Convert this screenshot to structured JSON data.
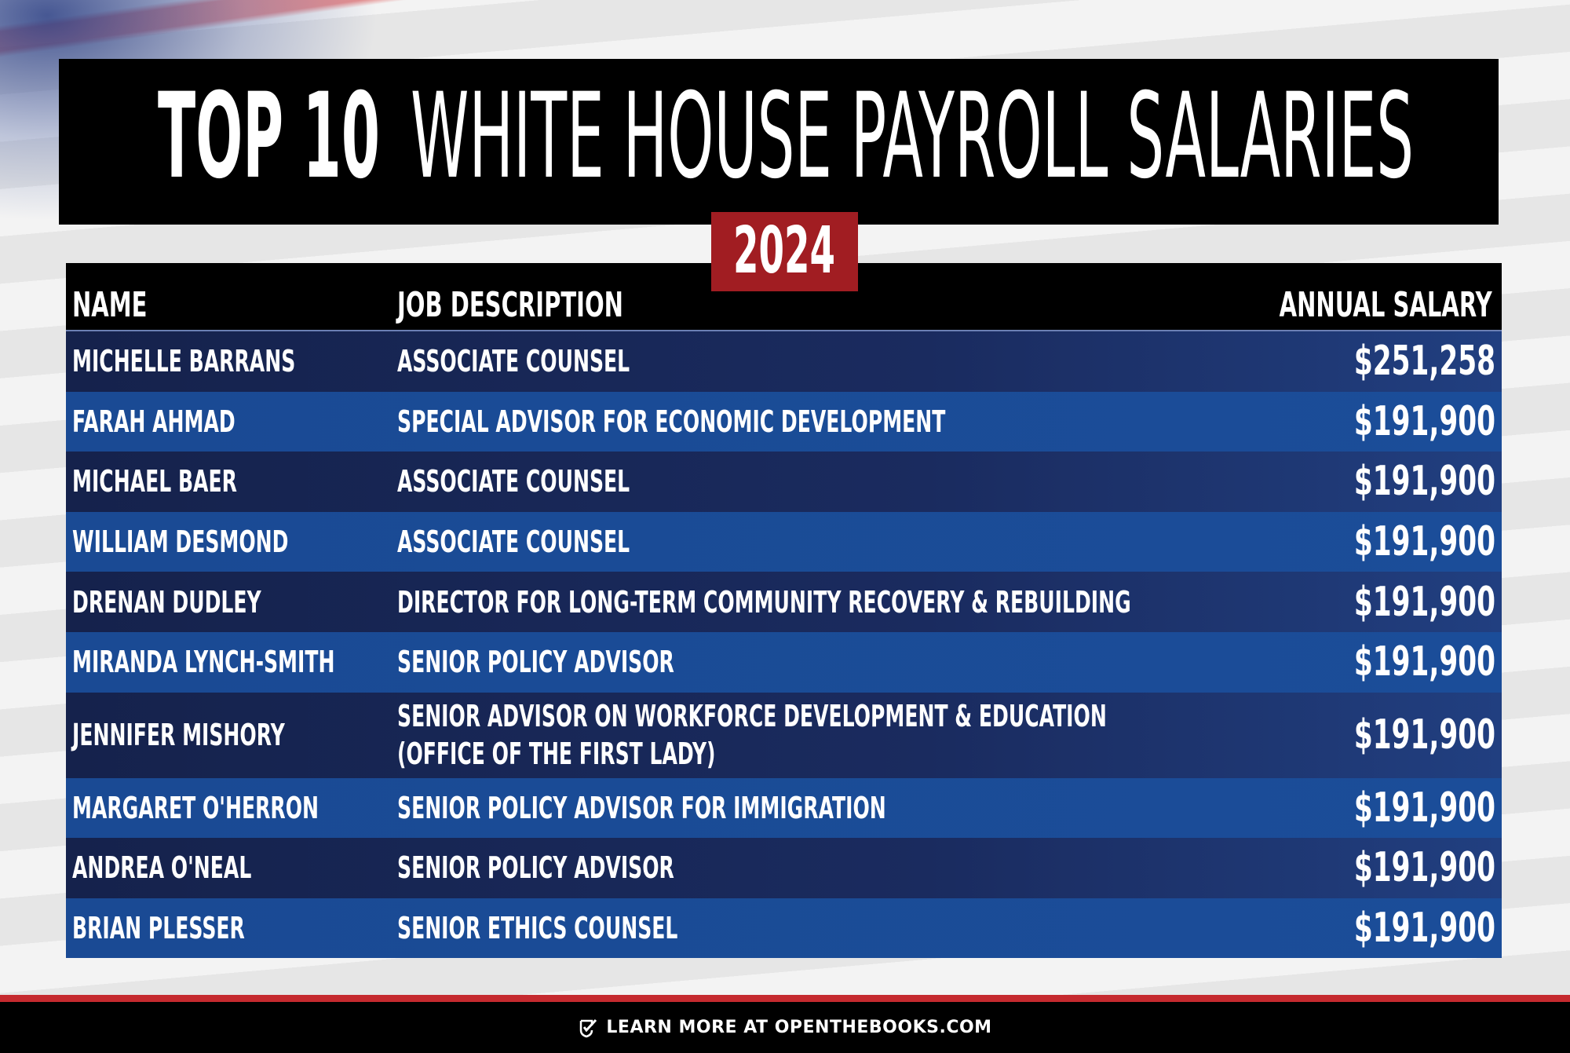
{
  "title": {
    "highlight": "TOP 10",
    "text": "WHITE HOUSE PAYROLL SALARIES"
  },
  "year": "2024",
  "table": {
    "columns": [
      "NAME",
      "JOB DESCRIPTION",
      "ANNUAL SALARY"
    ],
    "rows": [
      [
        "MICHELLE BARRANS",
        "ASSOCIATE COUNSEL",
        "$251,258"
      ],
      [
        "FARAH AHMAD",
        "SPECIAL ADVISOR FOR ECONOMIC DEVELOPMENT",
        "$191,900"
      ],
      [
        "MICHAEL BAER",
        "ASSOCIATE COUNSEL",
        "$191,900"
      ],
      [
        "WILLIAM DESMOND",
        "ASSOCIATE COUNSEL",
        "$191,900"
      ],
      [
        "DRENAN DUDLEY",
        "DIRECTOR FOR LONG-TERM COMMUNITY RECOVERY & REBUILDING",
        "$191,900"
      ],
      [
        "MIRANDA LYNCH-SMITH",
        "SENIOR POLICY ADVISOR",
        "$191,900"
      ],
      [
        "JENNIFER MISHORY",
        [
          "SENIOR ADVISOR ON WORKFORCE DEVELOPMENT & EDUCATION",
          "(OFFICE OF THE FIRST LADY)"
        ],
        "$191,900"
      ],
      [
        "MARGARET O'HERRON",
        "SENIOR POLICY ADVISOR FOR IMMIGRATION",
        "$191,900"
      ],
      [
        "ANDREA O'NEAL",
        "SENIOR POLICY ADVISOR",
        "$191,900"
      ],
      [
        "BRIAN PLESSER",
        "SENIOR ETHICS COUNSEL",
        "$191,900"
      ]
    ]
  },
  "footer": "LEARN MORE AT OPENTHEBOOKS.COM"
}
